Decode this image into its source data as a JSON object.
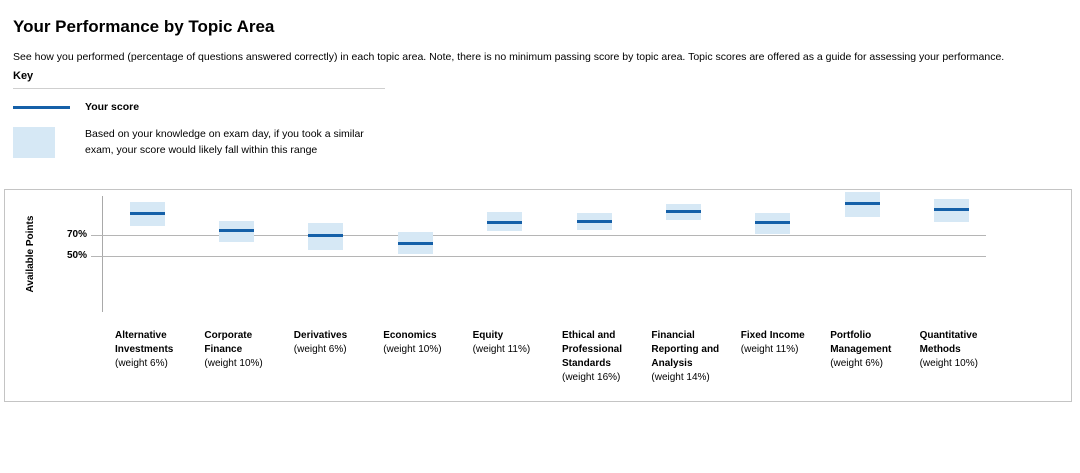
{
  "page": {
    "title": "Your Performance by Topic Area",
    "description": "See how you performed (percentage of questions answered correctly) in each topic area. Note, there is no minimum passing score by topic area. Topic scores are offered as a guide for assessing your performance."
  },
  "key": {
    "heading": "Key",
    "score_label": "Your score",
    "range_description": "Based on your knowledge on exam day, if you took a similar exam, your score would likely fall within this range"
  },
  "colors": {
    "score_line": "#1560a8",
    "range_band": "#d6e8f5",
    "gridline": "#b5b5b5",
    "axis": "#a9a9a9",
    "chart_border": "#c4c4c4",
    "text": "#000000"
  },
  "chart_data": {
    "type": "bar",
    "variant": "floating-range-band-with-score-line",
    "title": "Your Performance by Topic Area",
    "xlabel": "",
    "ylabel": "Available Points",
    "yticks": [
      {
        "value": 70,
        "label": "70%"
      },
      {
        "value": 50,
        "label": "50%"
      }
    ],
    "gridlines_at": [
      70,
      50
    ],
    "legend_position": "above-chart",
    "legend": [
      "Your score",
      "Likely score range"
    ],
    "categories": [
      "Alternative Investments",
      "Corporate Finance",
      "Derivatives",
      "Economics",
      "Equity",
      "Ethical and Professional Standards",
      "Financial Reporting and Analysis",
      "Fixed Income",
      "Portfolio Management",
      "Quantitative Methods"
    ],
    "series": [
      {
        "name": "Your score (%)",
        "values": [
          91,
          75,
          70,
          62,
          82,
          83,
          93,
          82,
          100,
          95
        ]
      },
      {
        "name": "Likely range low (%)",
        "values": [
          79,
          64,
          56,
          52,
          74,
          75,
          85,
          71,
          87,
          83
        ]
      },
      {
        "name": "Likely range high (%)",
        "values": [
          102,
          84,
          82,
          73,
          92,
          91,
          100,
          91,
          111,
          105
        ]
      }
    ],
    "topics": [
      {
        "name": "Alternative Investments",
        "weight_label": "(weight 6%)",
        "score_pct": 91,
        "range_low_pct": 79,
        "range_high_pct": 102
      },
      {
        "name": "Corporate Finance",
        "weight_label": "(weight 10%)",
        "score_pct": 75,
        "range_low_pct": 64,
        "range_high_pct": 84
      },
      {
        "name": "Derivatives",
        "weight_label": "(weight 6%)",
        "score_pct": 70,
        "range_low_pct": 56,
        "range_high_pct": 82
      },
      {
        "name": "Economics",
        "weight_label": "(weight 10%)",
        "score_pct": 62,
        "range_low_pct": 52,
        "range_high_pct": 73
      },
      {
        "name": "Equity",
        "weight_label": "(weight 11%)",
        "score_pct": 82,
        "range_low_pct": 74,
        "range_high_pct": 92
      },
      {
        "name": "Ethical and Professional Standards",
        "weight_label": "(weight 16%)",
        "score_pct": 83,
        "range_low_pct": 75,
        "range_high_pct": 91
      },
      {
        "name": "Financial Reporting and Analysis",
        "weight_label": "(weight 14%)",
        "score_pct": 93,
        "range_low_pct": 85,
        "range_high_pct": 100
      },
      {
        "name": "Fixed Income",
        "weight_label": "(weight 11%)",
        "score_pct": 82,
        "range_low_pct": 71,
        "range_high_pct": 91
      },
      {
        "name": "Portfolio Management",
        "weight_label": "(weight 6%)",
        "score_pct": 100,
        "range_low_pct": 87,
        "range_high_pct": 111
      },
      {
        "name": "Quantitative Methods",
        "weight_label": "(weight 10%)",
        "score_pct": 95,
        "range_low_pct": 83,
        "range_high_pct": 105
      }
    ]
  }
}
